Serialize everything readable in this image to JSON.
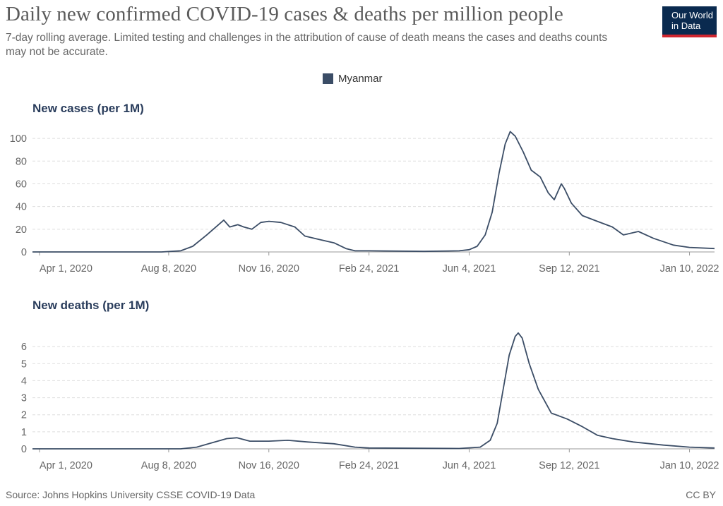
{
  "title": "Daily new confirmed COVID-19 cases & deaths per million people",
  "subtitle": "7-day rolling average. Limited testing and challenges in the attribution of cause of death means the cases and deaths counts may not be accurate.",
  "logo": {
    "line1": "Our World",
    "line2": "in Data"
  },
  "legend": {
    "label": "Myanmar",
    "color": "#3b4d66"
  },
  "source": "Source: Johns Hopkins University CSSE COVID-19 Data",
  "license": "CC BY",
  "chart_data": [
    {
      "type": "line",
      "title": "New cases (per 1M)",
      "xlabel": "",
      "ylabel": "",
      "ylim": [
        0,
        110
      ],
      "yticks": [
        0,
        20,
        40,
        60,
        80,
        100
      ],
      "xlim": [
        "2020-03-25",
        "2022-02-04"
      ],
      "xticks": [
        "2020-04-01",
        "2020-08-08",
        "2020-11-16",
        "2021-02-24",
        "2021-06-04",
        "2021-09-12",
        "2022-01-10"
      ],
      "xtick_labels": [
        "Apr 1, 2020",
        "Aug 8, 2020",
        "Nov 16, 2020",
        "Feb 24, 2021",
        "Jun 4, 2021",
        "Sep 12, 2021",
        "Jan 10, 2022"
      ],
      "grid": true,
      "series": [
        {
          "name": "Myanmar",
          "color": "#3b4d66",
          "points": [
            [
              "2020-03-25",
              0
            ],
            [
              "2020-08-01",
              0
            ],
            [
              "2020-08-20",
              1
            ],
            [
              "2020-09-01",
              5
            ],
            [
              "2020-09-15",
              15
            ],
            [
              "2020-09-28",
              25
            ],
            [
              "2020-10-02",
              28
            ],
            [
              "2020-10-08",
              22
            ],
            [
              "2020-10-16",
              24
            ],
            [
              "2020-10-22",
              22
            ],
            [
              "2020-10-30",
              20
            ],
            [
              "2020-11-08",
              26
            ],
            [
              "2020-11-16",
              27
            ],
            [
              "2020-11-28",
              26
            ],
            [
              "2020-12-12",
              22
            ],
            [
              "2020-12-22",
              14
            ],
            [
              "2021-01-05",
              11
            ],
            [
              "2021-01-20",
              8
            ],
            [
              "2021-02-01",
              3
            ],
            [
              "2021-02-10",
              1
            ],
            [
              "2021-02-24",
              1
            ],
            [
              "2021-04-20",
              0.5
            ],
            [
              "2021-05-25",
              1
            ],
            [
              "2021-06-04",
              2
            ],
            [
              "2021-06-12",
              5
            ],
            [
              "2021-06-20",
              15
            ],
            [
              "2021-06-27",
              35
            ],
            [
              "2021-07-04",
              70
            ],
            [
              "2021-07-10",
              95
            ],
            [
              "2021-07-15",
              106
            ],
            [
              "2021-07-20",
              102
            ],
            [
              "2021-07-28",
              88
            ],
            [
              "2021-08-05",
              72
            ],
            [
              "2021-08-14",
              66
            ],
            [
              "2021-08-22",
              52
            ],
            [
              "2021-08-28",
              46
            ],
            [
              "2021-09-04",
              60
            ],
            [
              "2021-09-07",
              56
            ],
            [
              "2021-09-14",
              43
            ],
            [
              "2021-09-25",
              32
            ],
            [
              "2021-10-10",
              27
            ],
            [
              "2021-10-25",
              22
            ],
            [
              "2021-11-05",
              15
            ],
            [
              "2021-11-20",
              18
            ],
            [
              "2021-12-05",
              12
            ],
            [
              "2021-12-25",
              6
            ],
            [
              "2022-01-10",
              4
            ],
            [
              "2022-02-04",
              3
            ]
          ]
        }
      ]
    },
    {
      "type": "line",
      "title": "New deaths (per 1M)",
      "xlabel": "",
      "ylabel": "",
      "ylim": [
        0,
        7
      ],
      "yticks": [
        0,
        1,
        2,
        3,
        4,
        5,
        6
      ],
      "xlim": [
        "2020-03-25",
        "2022-02-04"
      ],
      "xticks": [
        "2020-04-01",
        "2020-08-08",
        "2020-11-16",
        "2021-02-24",
        "2021-06-04",
        "2021-09-12",
        "2022-01-10"
      ],
      "xtick_labels": [
        "Apr 1, 2020",
        "Aug 8, 2020",
        "Nov 16, 2020",
        "Feb 24, 2021",
        "Jun 4, 2021",
        "Sep 12, 2021",
        "Jan 10, 2022"
      ],
      "grid": true,
      "series": [
        {
          "name": "Myanmar",
          "color": "#3b4d66",
          "points": [
            [
              "2020-03-25",
              0
            ],
            [
              "2020-08-20",
              0
            ],
            [
              "2020-09-05",
              0.1
            ],
            [
              "2020-09-20",
              0.35
            ],
            [
              "2020-10-05",
              0.6
            ],
            [
              "2020-10-15",
              0.65
            ],
            [
              "2020-10-28",
              0.45
            ],
            [
              "2020-11-16",
              0.45
            ],
            [
              "2020-12-05",
              0.5
            ],
            [
              "2020-12-25",
              0.4
            ],
            [
              "2021-01-20",
              0.3
            ],
            [
              "2021-02-10",
              0.1
            ],
            [
              "2021-02-24",
              0.05
            ],
            [
              "2021-05-25",
              0.02
            ],
            [
              "2021-06-15",
              0.1
            ],
            [
              "2021-06-25",
              0.5
            ],
            [
              "2021-07-02",
              1.5
            ],
            [
              "2021-07-08",
              3.5
            ],
            [
              "2021-07-14",
              5.5
            ],
            [
              "2021-07-20",
              6.6
            ],
            [
              "2021-07-23",
              6.8
            ],
            [
              "2021-07-27",
              6.5
            ],
            [
              "2021-08-03",
              5
            ],
            [
              "2021-08-12",
              3.5
            ],
            [
              "2021-08-25",
              2.1
            ],
            [
              "2021-09-10",
              1.75
            ],
            [
              "2021-09-25",
              1.3
            ],
            [
              "2021-10-10",
              0.8
            ],
            [
              "2021-10-25",
              0.6
            ],
            [
              "2021-11-15",
              0.4
            ],
            [
              "2021-12-15",
              0.22
            ],
            [
              "2022-01-10",
              0.1
            ],
            [
              "2022-02-04",
              0.05
            ]
          ]
        }
      ]
    }
  ]
}
